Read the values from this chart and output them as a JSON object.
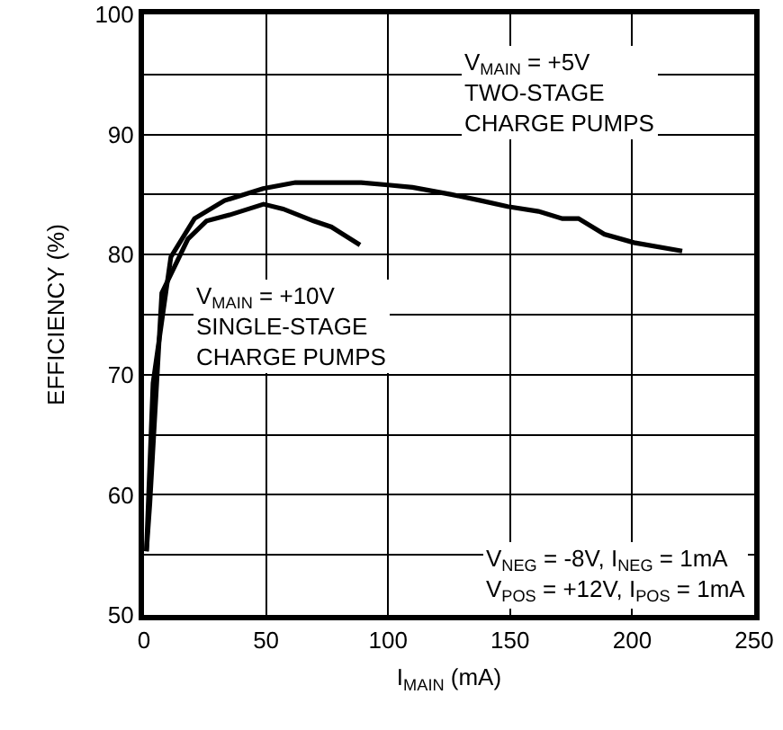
{
  "chart_data": {
    "type": "line",
    "xlabel": "I$_{MAIN}$ (mA)",
    "ylabel": "EFFICIENCY (%)",
    "xlim": [
      0,
      250
    ],
    "xticks": [
      0,
      50,
      100,
      150,
      200,
      250
    ],
    "ylim": [
      50,
      100
    ],
    "yticks": [
      50,
      {
        "value": 55,
        "label": null
      },
      60,
      {
        "value": 65,
        "label": null
      },
      70,
      {
        "value": 75,
        "label": null
      },
      80,
      {
        "value": 85,
        "label": null
      },
      90,
      {
        "value": 95,
        "label": null
      },
      100
    ],
    "grid": true,
    "legend": false,
    "marker": "none",
    "line_style": "solid",
    "series": [
      {
        "name": "V$_{MAIN}$ = +5V\nTWO-STAGE\nCHARGE PUMPS",
        "color": "#000000",
        "x": [
          1,
          3.7,
          11,
          20.7,
          33,
          48.8,
          62,
          89,
          100,
          110,
          126,
          138,
          149,
          161.6,
          171.4,
          178,
          188.6,
          200.7,
          220.5
        ],
        "values": [
          55.3,
          69.3,
          79.8,
          83,
          84.5,
          85.5,
          86,
          86,
          85.8,
          85.6,
          85,
          84.5,
          84,
          83.6,
          83,
          83,
          81.7,
          81,
          80.3
        ]
      },
      {
        "name": "V$_{MAIN}$ = +10V\nSINGLE-STAGE\nCHARGE PUMPS",
        "color": "#000000",
        "x": [
          1,
          2.4,
          7.3,
          18,
          25.6,
          35,
          49,
          57,
          69.5,
          76.8,
          88.5
        ],
        "values": [
          55.3,
          59.3,
          76.8,
          81.3,
          82.8,
          83.3,
          84.2,
          83.8,
          82.8,
          82.3,
          80.8
        ]
      }
    ],
    "annotations": [
      "V$_{NEG}$ = -8V, I$_{NEG}$ = 1mA\nV$_{POS}$ = +12V, I$_{POS}$ = 1mA"
    ]
  }
}
